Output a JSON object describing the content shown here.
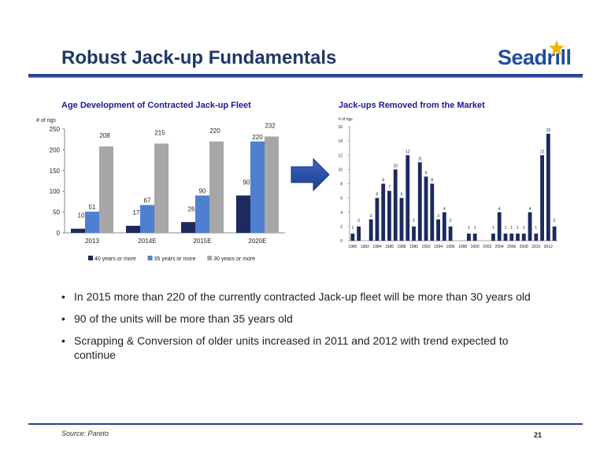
{
  "header": {
    "title": "Robust Jack-up Fundamentals",
    "logo_text": "Seadrill",
    "accent_color": "#1f3864"
  },
  "left_chart_title": "Age Development of Contracted Jack-up Fleet",
  "right_chart_title": "Jack-ups Removed from the Market",
  "arrow_icon": "arrow-right-icon",
  "bullets": [
    "In 2015 more than 220 of the currently contracted Jack-up fleet will be more  than 30 years old",
    "90 of the units will be more than 35 years old",
    "Scrapping & Conversion of older units increased in 2011 and 2012 with trend expected to continue"
  ],
  "footer": {
    "source": "Source: Pareto",
    "page_number": "21"
  },
  "chart_data": [
    {
      "type": "bar",
      "title": "Age Development of Contracted Jack-up Fleet",
      "ylabel": "# of rigs",
      "xlabel": "",
      "ylim": [
        0,
        250
      ],
      "yticks": [
        0,
        50,
        100,
        150,
        200,
        250
      ],
      "categories": [
        "2013",
        "2014E",
        "2015E",
        "2020E"
      ],
      "series": [
        {
          "name": "40 years or more",
          "color": "#1c2a5e",
          "values": [
            10,
            17,
            26,
            90
          ]
        },
        {
          "name": "35 years or more",
          "color": "#4f7fd1",
          "values": [
            51,
            67,
            90,
            220
          ]
        },
        {
          "name": "30 years or more",
          "color": "#a6a6a6",
          "values": [
            208,
            215,
            220,
            232
          ]
        }
      ],
      "legend": "bottom",
      "grid": false
    },
    {
      "type": "bar",
      "title": "Jack-ups Removed from the Market",
      "ylabel": "# of rigs",
      "xlabel": "",
      "ylim": [
        0,
        16
      ],
      "yticks": [
        0,
        2,
        4,
        6,
        8,
        10,
        12,
        14,
        16
      ],
      "color": "#1c2a5e",
      "x": [
        1980,
        1981,
        1982,
        1983,
        1984,
        1985,
        1986,
        1987,
        1988,
        1989,
        1990,
        1991,
        1992,
        1993,
        1994,
        1995,
        1996,
        1997,
        1998,
        1999,
        2000,
        2001,
        2002,
        2003,
        2004,
        2005,
        2006,
        2007,
        2008,
        2009,
        2010,
        2011,
        2012,
        2013
      ],
      "values": [
        1,
        2,
        0,
        3,
        6,
        8,
        7,
        10,
        6,
        12,
        2,
        11,
        9,
        8,
        3,
        4,
        2,
        0,
        0,
        1,
        1,
        0,
        0,
        1,
        4,
        1,
        1,
        1,
        1,
        4,
        1,
        12,
        15,
        2
      ],
      "xtick_labels": [
        "1980",
        "1982",
        "1984",
        "1986",
        "1988",
        "1990",
        "1992",
        "1994",
        "1996",
        "1998",
        "2000",
        "2002",
        "2004",
        "2006",
        "2008",
        "2010",
        "2012"
      ],
      "legend": "none",
      "grid": false
    }
  ]
}
